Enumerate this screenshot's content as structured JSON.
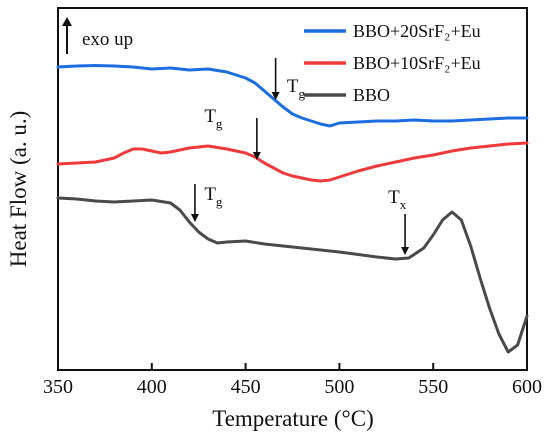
{
  "chart_data": {
    "type": "line",
    "title": "",
    "xlabel": "Temperature (°C)",
    "ylabel": "Heat Flow (a. u.)",
    "xlim": [
      350,
      600
    ],
    "xticks": [
      "350",
      "400",
      "450",
      "500",
      "550",
      "600"
    ],
    "y_ticks_shown": false,
    "grid": false,
    "legend_position": "top-right",
    "exo_label": "exo up",
    "series": [
      {
        "name": "BBO+20SrF₂+Eu",
        "color": "#1c6ee0",
        "points": [
          [
            350,
            67
          ],
          [
            360,
            66
          ],
          [
            370,
            65.5
          ],
          [
            380,
            66
          ],
          [
            390,
            67
          ],
          [
            400,
            69
          ],
          [
            410,
            68
          ],
          [
            420,
            70
          ],
          [
            430,
            69
          ],
          [
            440,
            72
          ],
          [
            450,
            78
          ],
          [
            455,
            83
          ],
          [
            460,
            91
          ],
          [
            465,
            99
          ],
          [
            470,
            107
          ],
          [
            475,
            114
          ],
          [
            480,
            118
          ],
          [
            485,
            121
          ],
          [
            490,
            124
          ],
          [
            495,
            126
          ],
          [
            500,
            123
          ],
          [
            510,
            122
          ],
          [
            520,
            121
          ],
          [
            530,
            121
          ],
          [
            540,
            120
          ],
          [
            550,
            121
          ],
          [
            560,
            121
          ],
          [
            570,
            120
          ],
          [
            580,
            119
          ],
          [
            590,
            118
          ],
          [
            600,
            118
          ]
        ]
      },
      {
        "name": "BBO+10SrF₂+Eu",
        "color": "#f03a3a",
        "points": [
          [
            350,
            164
          ],
          [
            360,
            163
          ],
          [
            370,
            162
          ],
          [
            380,
            158
          ],
          [
            385,
            153
          ],
          [
            390,
            149
          ],
          [
            395,
            149
          ],
          [
            400,
            151
          ],
          [
            405,
            153
          ],
          [
            410,
            152
          ],
          [
            420,
            148
          ],
          [
            430,
            146
          ],
          [
            440,
            149
          ],
          [
            450,
            153
          ],
          [
            455,
            157
          ],
          [
            460,
            163
          ],
          [
            465,
            168
          ],
          [
            470,
            173
          ],
          [
            475,
            176
          ],
          [
            480,
            178
          ],
          [
            485,
            180
          ],
          [
            490,
            181
          ],
          [
            495,
            180
          ],
          [
            500,
            177
          ],
          [
            510,
            171
          ],
          [
            520,
            166
          ],
          [
            530,
            162
          ],
          [
            540,
            158
          ],
          [
            550,
            155
          ],
          [
            560,
            151
          ],
          [
            570,
            148
          ],
          [
            580,
            146
          ],
          [
            590,
            144
          ],
          [
            600,
            143
          ]
        ]
      },
      {
        "name": "BBO",
        "color": "#4a4a4a",
        "points": [
          [
            350,
            198
          ],
          [
            360,
            199
          ],
          [
            370,
            201
          ],
          [
            380,
            202
          ],
          [
            390,
            201
          ],
          [
            400,
            200
          ],
          [
            410,
            203
          ],
          [
            415,
            210
          ],
          [
            420,
            222
          ],
          [
            425,
            232
          ],
          [
            430,
            239
          ],
          [
            435,
            243
          ],
          [
            440,
            242
          ],
          [
            450,
            241
          ],
          [
            460,
            244
          ],
          [
            480,
            248
          ],
          [
            500,
            252
          ],
          [
            520,
            257
          ],
          [
            530,
            259
          ],
          [
            537,
            258
          ],
          [
            545,
            248
          ],
          [
            550,
            235
          ],
          [
            555,
            220
          ],
          [
            560,
            212
          ],
          [
            565,
            220
          ],
          [
            570,
            246
          ],
          [
            575,
            278
          ],
          [
            580,
            308
          ],
          [
            585,
            334
          ],
          [
            590,
            352
          ],
          [
            595,
            345
          ],
          [
            600,
            316
          ]
        ]
      }
    ],
    "annotations": [
      {
        "label": "T",
        "sub": "g",
        "series": "BBO+20SrF₂+Eu",
        "x": 466,
        "arrow_top": 58,
        "arrow_bottom": 100,
        "text_x": 472,
        "text_y": 92
      },
      {
        "label": "T",
        "sub": "g",
        "series": "BBO+10SrF₂+Eu",
        "x": 456,
        "arrow_top": 118,
        "arrow_bottom": 160,
        "text_x": 428,
        "text_y": 122
      },
      {
        "label": "T",
        "sub": "g",
        "series": "BBO",
        "x": 423,
        "arrow_top": 184,
        "arrow_bottom": 222,
        "text_x": 428,
        "text_y": 200
      },
      {
        "label": "T",
        "sub": "x",
        "series": "BBO",
        "x": 535,
        "arrow_top": 214,
        "arrow_bottom": 255,
        "text_x": 526,
        "text_y": 203
      }
    ]
  }
}
